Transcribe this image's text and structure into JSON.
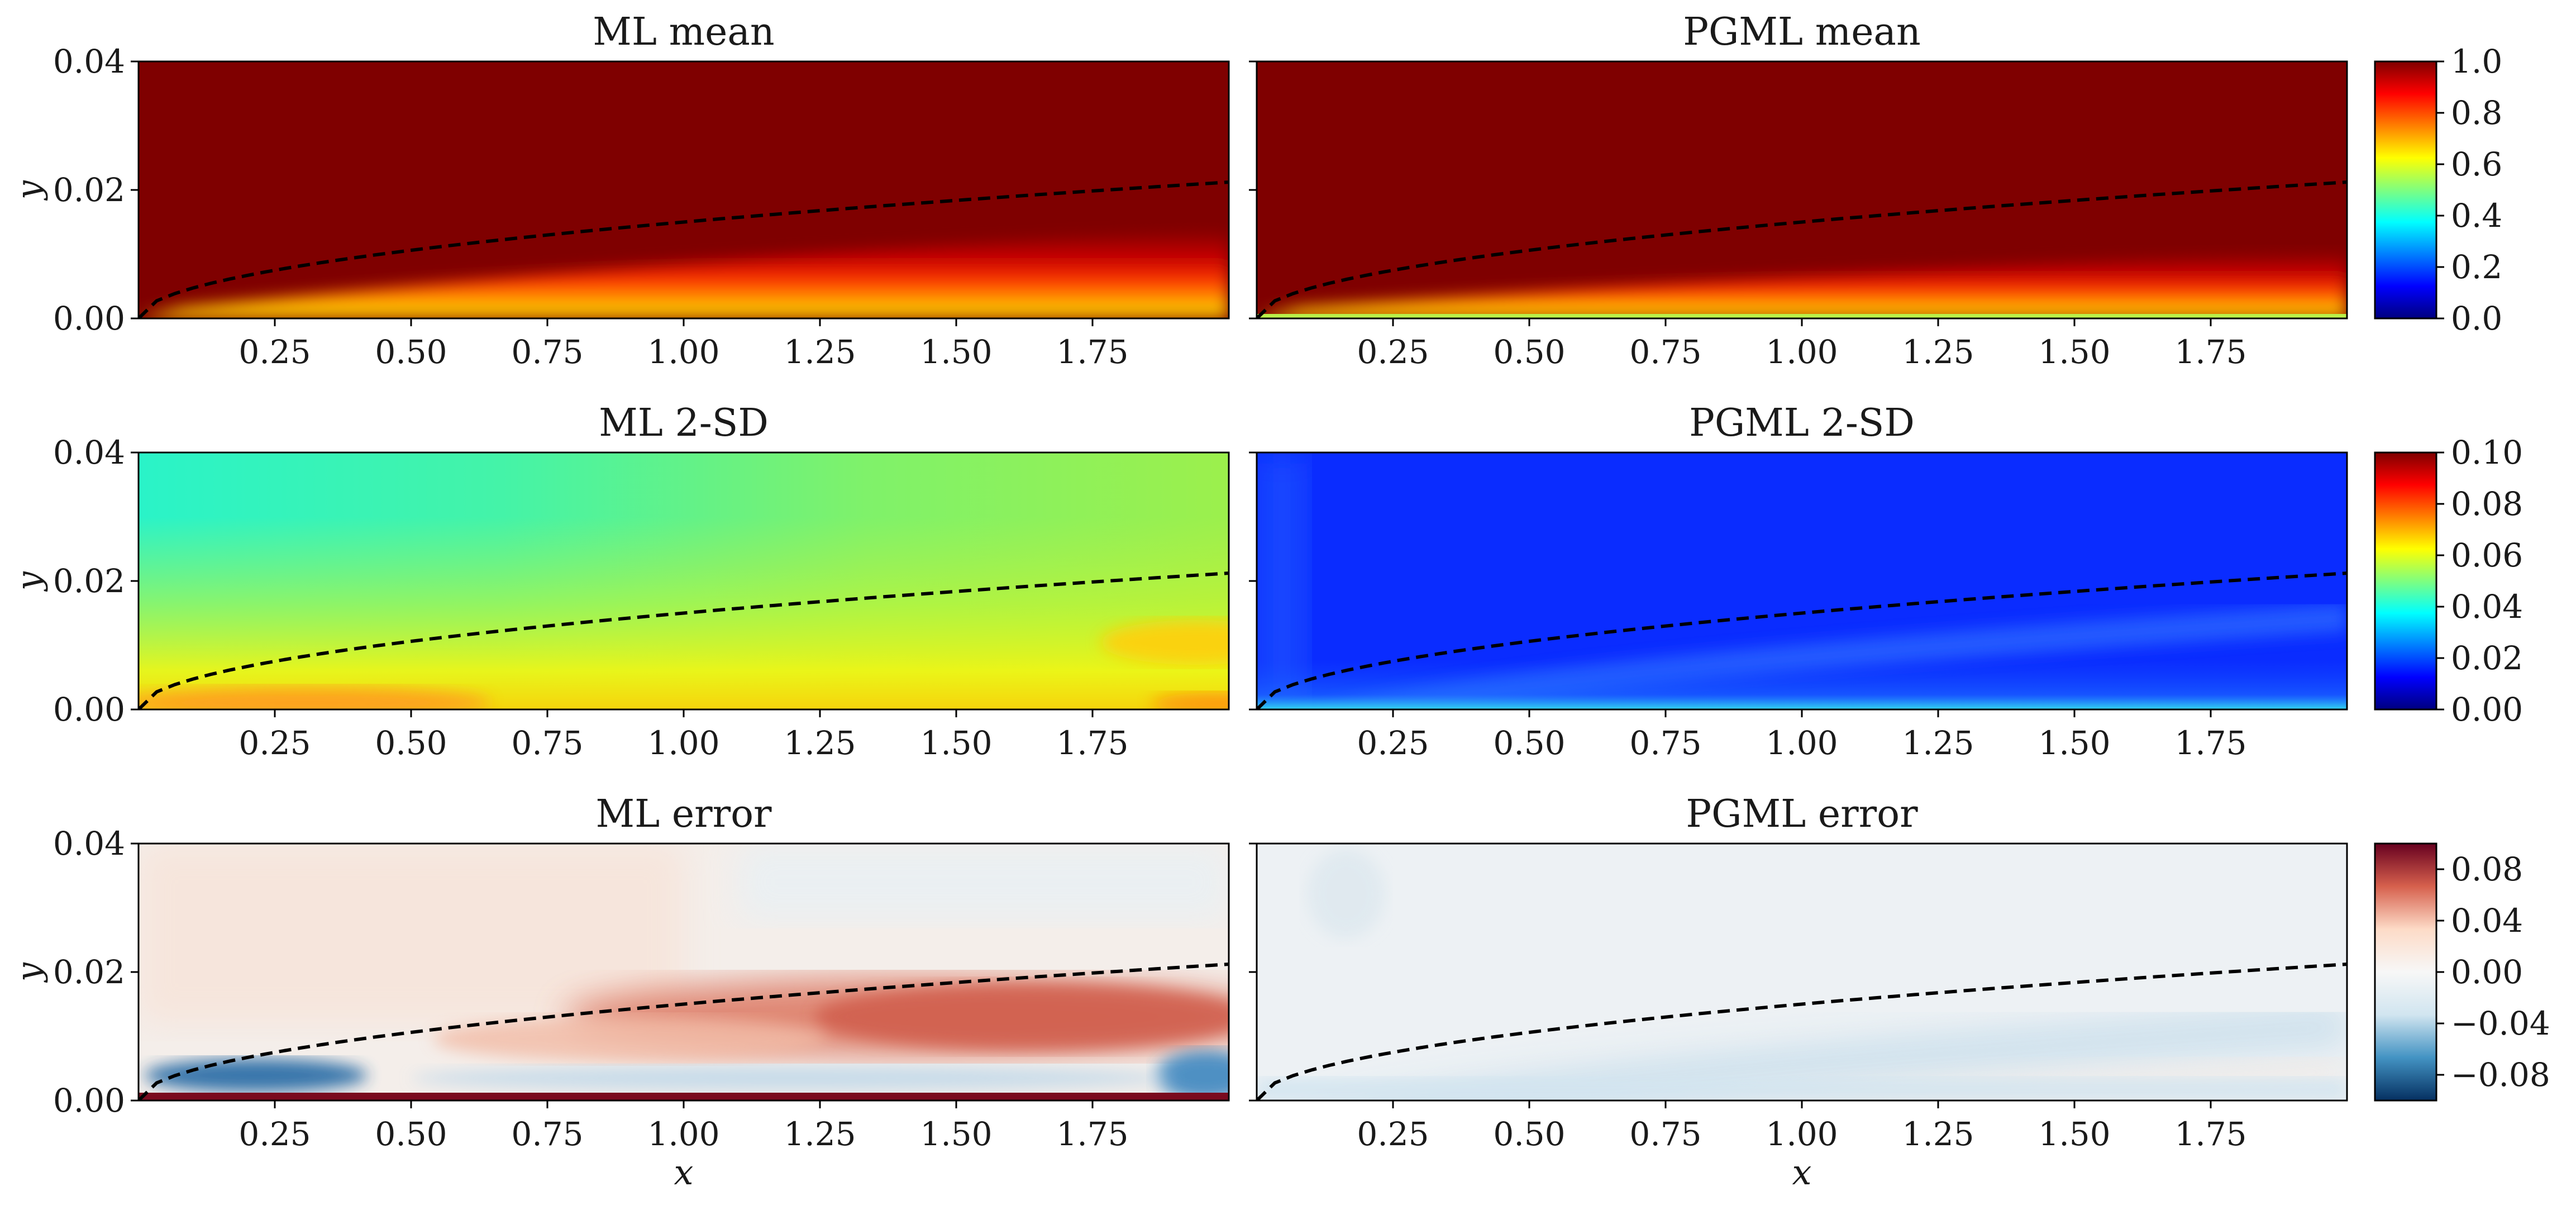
{
  "figure": {
    "x_tick_labels": [
      "0.25",
      "0.50",
      "0.75",
      "1.00",
      "1.25",
      "1.50",
      "1.75"
    ],
    "y_tick_labels": [
      "0.00",
      "0.02",
      "0.04"
    ],
    "xlabel": "x",
    "ylabel": "y"
  },
  "chart_data": [
    {
      "type": "heatmap",
      "title": "ML mean",
      "field": "mean",
      "model": "ML",
      "xlim": [
        0,
        2
      ],
      "ylim": [
        0,
        0.04
      ],
      "colormap": "jet",
      "boundary_layer_curve": {
        "x": [
          0,
          0.5,
          1.0,
          1.5,
          2.0
        ],
        "y": [
          0,
          0.0106,
          0.015,
          0.0184,
          0.0212
        ],
        "style": "black dashed"
      },
      "xlabel": "",
      "ylabel": "y"
    },
    {
      "type": "heatmap",
      "title": "PGML mean",
      "field": "mean",
      "model": "PGML",
      "xlim": [
        0,
        2
      ],
      "ylim": [
        0,
        0.04
      ],
      "colormap": "jet",
      "boundary_layer_curve": {
        "x": [
          0,
          0.5,
          1.0,
          1.5,
          2.0
        ],
        "y": [
          0,
          0.0106,
          0.015,
          0.0184,
          0.0212
        ],
        "style": "black dashed"
      },
      "xlabel": "",
      "ylabel": ""
    },
    {
      "type": "heatmap",
      "title": "ML 2-SD",
      "field": "2-SD",
      "model": "ML",
      "xlim": [
        0,
        2
      ],
      "ylim": [
        0,
        0.04
      ],
      "colormap": "jet",
      "boundary_layer_curve": {
        "x": [
          0,
          0.5,
          1.0,
          1.5,
          2.0
        ],
        "y": [
          0,
          0.0106,
          0.015,
          0.0184,
          0.0212
        ],
        "style": "black dashed"
      },
      "xlabel": "",
      "ylabel": "y"
    },
    {
      "type": "heatmap",
      "title": "PGML 2-SD",
      "field": "2-SD",
      "model": "PGML",
      "xlim": [
        0,
        2
      ],
      "ylim": [
        0,
        0.04
      ],
      "colormap": "jet",
      "boundary_layer_curve": {
        "x": [
          0,
          0.5,
          1.0,
          1.5,
          2.0
        ],
        "y": [
          0,
          0.0106,
          0.015,
          0.0184,
          0.0212
        ],
        "style": "black dashed"
      },
      "xlabel": "",
      "ylabel": ""
    },
    {
      "type": "heatmap",
      "title": "ML error",
      "field": "error",
      "model": "ML",
      "xlim": [
        0,
        2
      ],
      "ylim": [
        0,
        0.04
      ],
      "colormap": "RdBu",
      "boundary_layer_curve": {
        "x": [
          0,
          0.5,
          1.0,
          1.5,
          2.0
        ],
        "y": [
          0,
          0.0106,
          0.015,
          0.0184,
          0.0212
        ],
        "style": "black dashed"
      },
      "xlabel": "x",
      "ylabel": "y"
    },
    {
      "type": "heatmap",
      "title": "PGML error",
      "field": "error",
      "model": "PGML",
      "xlim": [
        0,
        2
      ],
      "ylim": [
        0,
        0.04
      ],
      "colormap": "RdBu",
      "boundary_layer_curve": {
        "x": [
          0,
          0.5,
          1.0,
          1.5,
          2.0
        ],
        "y": [
          0,
          0.0106,
          0.015,
          0.0184,
          0.0212
        ],
        "style": "black dashed"
      },
      "xlabel": "x",
      "ylabel": ""
    }
  ],
  "colorbars": [
    {
      "name": "mean",
      "colormap": "jet",
      "range": [
        0,
        1.0
      ],
      "tick_labels": [
        "0.0",
        "0.2",
        "0.4",
        "0.6",
        "0.8",
        "1.0"
      ],
      "tick_values": [
        0,
        0.2,
        0.4,
        0.6,
        0.8,
        1.0
      ]
    },
    {
      "name": "2-SD",
      "colormap": "jet",
      "range": [
        0,
        0.1
      ],
      "tick_labels": [
        "0.00",
        "0.02",
        "0.04",
        "0.06",
        "0.08",
        "0.10"
      ],
      "tick_values": [
        0,
        0.02,
        0.04,
        0.06,
        0.08,
        0.1
      ]
    },
    {
      "name": "error",
      "colormap": "RdBu",
      "range": [
        -0.1,
        0.1
      ],
      "tick_labels": [
        "−0.08",
        "−0.04",
        "0.00",
        "0.04",
        "0.08"
      ],
      "tick_values": [
        -0.08,
        -0.04,
        0,
        0.04,
        0.08
      ]
    }
  ],
  "colors": {
    "jet": [
      "#00007f",
      "#0000ff",
      "#007fff",
      "#00ffff",
      "#7fff7f",
      "#ffff00",
      "#ff7f00",
      "#ff0000",
      "#7f0000"
    ],
    "rdbu": [
      "#67001f",
      "#d6604d",
      "#fddbc7",
      "#f7f7f7",
      "#d1e5f0",
      "#4393c3",
      "#053061"
    ],
    "curve": "#000000",
    "axis": "#000000"
  }
}
